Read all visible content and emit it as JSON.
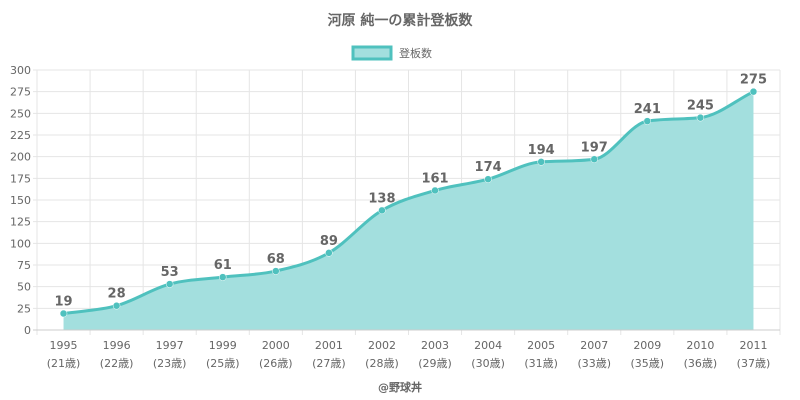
{
  "chart_data": {
    "type": "area",
    "title": "河原 純一の累計登板数",
    "categories": [
      "1995",
      "1996",
      "1997",
      "1999",
      "2000",
      "2001",
      "2002",
      "2003",
      "2004",
      "2005",
      "2007",
      "2009",
      "2010",
      "2011"
    ],
    "category_sublabels": [
      "(21歳)",
      "(22歳)",
      "(23歳)",
      "(25歳)",
      "(26歳)",
      "(27歳)",
      "(28歳)",
      "(29歳)",
      "(30歳)",
      "(31歳)",
      "(33歳)",
      "(35歳)",
      "(36歳)",
      "(37歳)"
    ],
    "series": [
      {
        "name": "登板数",
        "values": [
          19,
          28,
          53,
          61,
          68,
          89,
          138,
          161,
          174,
          194,
          197,
          241,
          245,
          275
        ]
      }
    ],
    "ylim": [
      0,
      300
    ],
    "yticks": [
      0,
      25,
      50,
      75,
      100,
      125,
      150,
      175,
      200,
      225,
      250,
      275,
      300
    ],
    "grid": true,
    "legend_position": "top-center",
    "colors": {
      "line": "#4fc1be",
      "fill": "#a3dfde",
      "text": "#666666",
      "grid": "#e5e5e5"
    }
  },
  "credit": "@野球丼"
}
